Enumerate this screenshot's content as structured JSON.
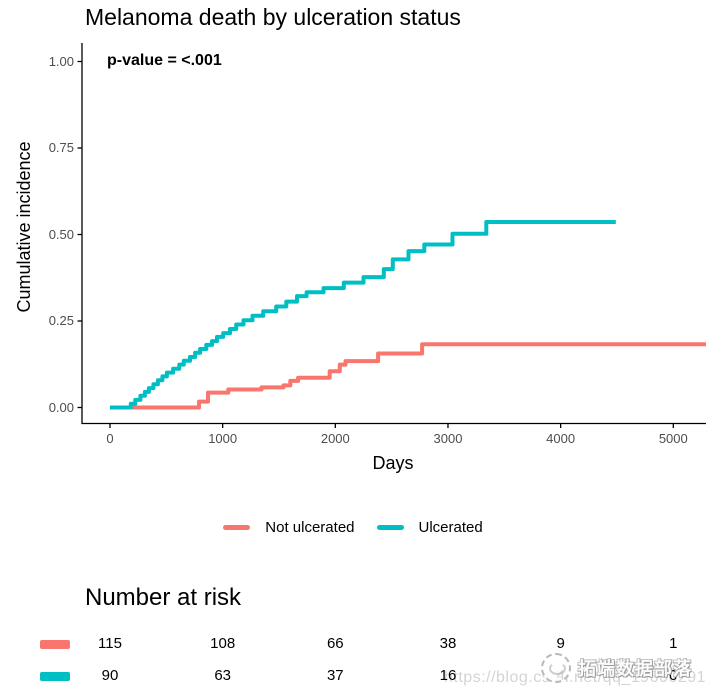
{
  "title": "Melanoma death by ulceration status",
  "annotation": {
    "p_value_label": "p-value = <.001"
  },
  "colors": {
    "not_ulcerated": "#F8766D",
    "ulcerated": "#00BFC4",
    "axis_text": "#4d4d4d",
    "axis_line": "#000000",
    "watermark_url_text": "#d4d4d4"
  },
  "chart_data": {
    "type": "line",
    "subtype": "step-cumulative-incidence",
    "title": "Melanoma death by ulceration status",
    "xlabel": "Days",
    "ylabel": "Cumulative incidence",
    "xlim": [
      0,
      5290
    ],
    "ylim": [
      0,
      1
    ],
    "grid": false,
    "legend_position": "bottom",
    "x_ticks": [
      0,
      1000,
      2000,
      3000,
      4000,
      5000
    ],
    "x_tick_labels": [
      "0",
      "1000",
      "2000",
      "3000",
      "4000",
      "5000"
    ],
    "y_ticks": [
      0,
      0.25,
      0.5,
      0.75,
      1
    ],
    "y_tick_labels": [
      "0.00",
      "0.25",
      "0.50",
      "0.75",
      "1.00"
    ],
    "annotation": "p-value = <.001",
    "series": [
      {
        "name": "Not ulcerated",
        "color": "#F8766D",
        "x_end": 5290,
        "steps": [
          [
            0,
            0
          ],
          [
            790,
            0.017
          ],
          [
            870,
            0.043
          ],
          [
            1050,
            0.052
          ],
          [
            1345,
            0.058
          ],
          [
            1540,
            0.064
          ],
          [
            1600,
            0.077
          ],
          [
            1670,
            0.086
          ],
          [
            1950,
            0.105
          ],
          [
            2040,
            0.124
          ],
          [
            2090,
            0.134
          ],
          [
            2380,
            0.156
          ],
          [
            2770,
            0.183
          ]
        ]
      },
      {
        "name": "Ulcerated",
        "color": "#00BFC4",
        "x_end": 4490,
        "steps": [
          [
            0,
            0
          ],
          [
            185,
            0.011
          ],
          [
            225,
            0.022
          ],
          [
            270,
            0.034
          ],
          [
            310,
            0.045
          ],
          [
            345,
            0.056
          ],
          [
            385,
            0.067
          ],
          [
            425,
            0.079
          ],
          [
            465,
            0.09
          ],
          [
            505,
            0.101
          ],
          [
            560,
            0.112
          ],
          [
            615,
            0.124
          ],
          [
            655,
            0.135
          ],
          [
            710,
            0.146
          ],
          [
            755,
            0.158
          ],
          [
            800,
            0.169
          ],
          [
            855,
            0.181
          ],
          [
            905,
            0.192
          ],
          [
            950,
            0.204
          ],
          [
            1005,
            0.215
          ],
          [
            1065,
            0.227
          ],
          [
            1120,
            0.24
          ],
          [
            1185,
            0.252
          ],
          [
            1265,
            0.265
          ],
          [
            1360,
            0.278
          ],
          [
            1475,
            0.292
          ],
          [
            1565,
            0.306
          ],
          [
            1660,
            0.322
          ],
          [
            1745,
            0.333
          ],
          [
            1895,
            0.345
          ],
          [
            2075,
            0.361
          ],
          [
            2250,
            0.377
          ],
          [
            2430,
            0.4
          ],
          [
            2510,
            0.428
          ],
          [
            2650,
            0.452
          ],
          [
            2790,
            0.471
          ],
          [
            3040,
            0.502
          ],
          [
            3340,
            0.536
          ]
        ]
      }
    ]
  },
  "legend": {
    "items": [
      {
        "label": "Not ulcerated",
        "color": "#F8766D"
      },
      {
        "label": "Ulcerated",
        "color": "#00BFC4"
      }
    ]
  },
  "risk_table": {
    "heading": "Number at risk",
    "time_points": [
      0,
      1000,
      2000,
      3000,
      4000,
      5000
    ],
    "rows": [
      {
        "group": "Not ulcerated",
        "color": "#F8766D",
        "values": [
          "115",
          "108",
          "66",
          "38",
          "9",
          "1"
        ]
      },
      {
        "group": "Ulcerated",
        "color": "#00BFC4",
        "values": [
          "90",
          "63",
          "37",
          "16",
          "4",
          "0"
        ]
      }
    ]
  },
  "watermark": {
    "logo_text": "拓端数据部落",
    "url_text": "https://blog.csdn.net/qq_19600291"
  }
}
